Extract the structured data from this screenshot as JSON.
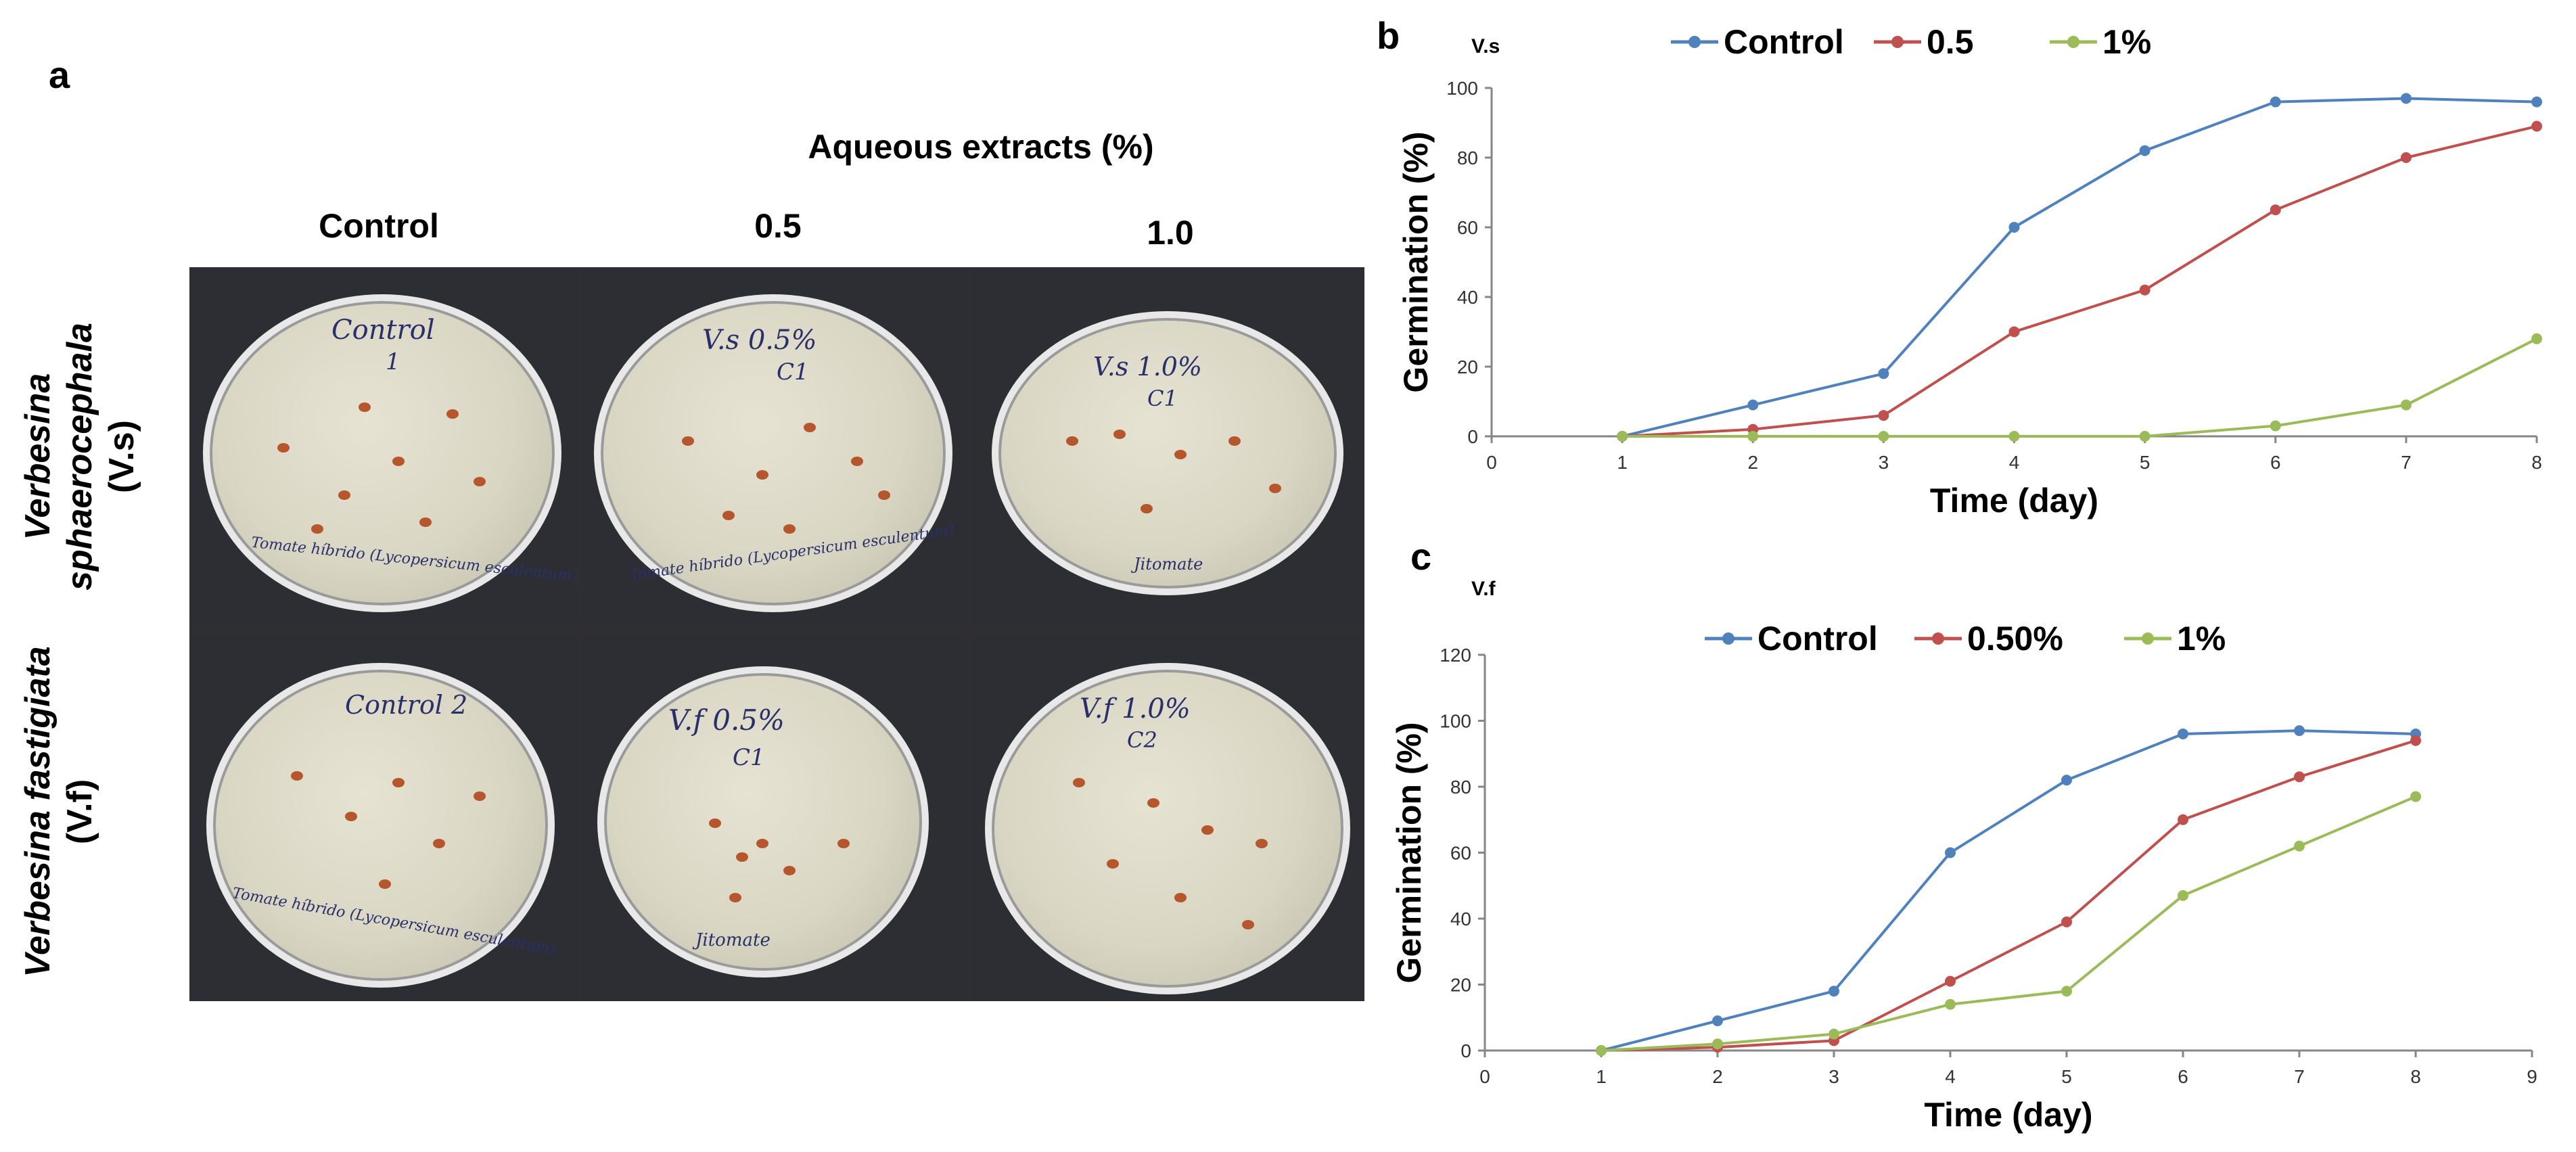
{
  "panel_a": {
    "letter": "a",
    "header": "Aqueous extracts (%)",
    "columns": [
      "Control",
      "0.5",
      "1.0"
    ],
    "rows": [
      {
        "species": "Verbesina sphaerocephala",
        "abbr": "(V.s)"
      },
      {
        "species": "Verbesina fastigiata",
        "abbr": "(V.f)"
      }
    ],
    "dishes": [
      {
        "label": "Control",
        "sub": "1",
        "bottom": "Tomate híbrido (Lycopersicum esculentum)"
      },
      {
        "label": "V.s 0.5%",
        "sub": "C1",
        "bottom": "Tomate híbrido (Lycopersicum esculentum)"
      },
      {
        "label": "V.s 1.0%",
        "sub": "C1",
        "bottom": "Jitomate"
      },
      {
        "label": "Control 2",
        "sub": "",
        "bottom": "Tomate híbrido (Lycopersicum esculentum)"
      },
      {
        "label": "V.f 0.5%",
        "sub": "C1",
        "bottom": "Jitomate"
      },
      {
        "label": "V.f 1.0%",
        "sub": "C2",
        "bottom": ""
      }
    ]
  },
  "chart_data": [
    {
      "panel": "b",
      "type": "line",
      "title": "V.s",
      "xlabel": "Time (day)",
      "ylabel": "Germination (%)",
      "xlim": [
        0,
        8
      ],
      "ylim": [
        0,
        100
      ],
      "xticks": [
        0,
        1,
        2,
        3,
        4,
        5,
        6,
        7,
        8
      ],
      "yticks": [
        0,
        20,
        40,
        60,
        80,
        100
      ],
      "legend_position": "top",
      "grid": false,
      "x": [
        1,
        2,
        3,
        4,
        5,
        6,
        7,
        8
      ],
      "series": [
        {
          "name": "Control",
          "color": "#4f81bd",
          "values": [
            0,
            9,
            18,
            60,
            82,
            96,
            97,
            96
          ]
        },
        {
          "name": "0.5",
          "color": "#c0504d",
          "values": [
            0,
            2,
            6,
            30,
            42,
            65,
            80,
            89
          ]
        },
        {
          "name": "1%",
          "color": "#9bbb59",
          "values": [
            0,
            0,
            0,
            0,
            0,
            3,
            9,
            28
          ]
        }
      ]
    },
    {
      "panel": "c",
      "type": "line",
      "title": "V.f",
      "xlabel": "Time (day)",
      "ylabel": "Germination (%)",
      "xlim": [
        0,
        9
      ],
      "ylim": [
        0,
        120
      ],
      "xticks": [
        0,
        1,
        2,
        3,
        4,
        5,
        6,
        7,
        8,
        9
      ],
      "yticks": [
        0,
        20,
        40,
        60,
        80,
        100,
        120
      ],
      "legend_position": "top",
      "grid": false,
      "x": [
        1,
        2,
        3,
        4,
        5,
        6,
        7,
        8
      ],
      "series": [
        {
          "name": "Control",
          "color": "#4f81bd",
          "values": [
            0,
            9,
            18,
            60,
            82,
            96,
            97,
            96
          ]
        },
        {
          "name": "0.50%",
          "color": "#c0504d",
          "values": [
            0,
            1,
            3,
            21,
            39,
            70,
            83,
            94
          ]
        },
        {
          "name": "1%",
          "color": "#9bbb59",
          "values": [
            0,
            2,
            5,
            14,
            18,
            47,
            62,
            77
          ]
        }
      ]
    }
  ]
}
